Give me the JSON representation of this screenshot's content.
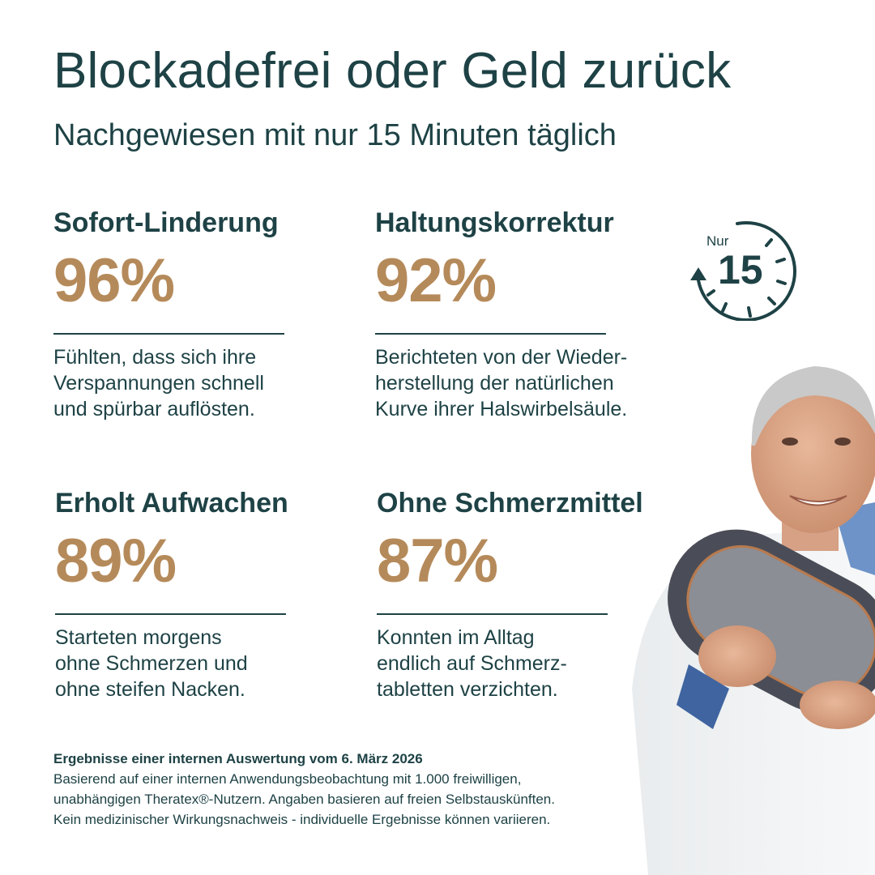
{
  "headline": "Blockadefrei oder Geld zurück",
  "subheadline": "Nachgewiesen mit nur 15 Minuten täglich",
  "stats": [
    {
      "title": "Sofort-Linderung",
      "percent": "96%",
      "text": "Fühlten, dass sich ihre\nVerspannungen schnell\nund spürbar auflösten."
    },
    {
      "title": "Haltungskorrektur",
      "percent": "92%",
      "text": "Berichteten von der Wieder-\nherstellung der natürlichen\nKurve ihrer Halswirbelsäule."
    },
    {
      "title": "Erholt Aufwachen",
      "percent": "89%",
      "text": "Starteten morgens\nohne Schmerzen und\nohne steifen Nacken."
    },
    {
      "title": "Ohne Schmerzmittel",
      "percent": "87%",
      "text": "Konnten im Alltag\nendlich auf Schmerz-\ntabletten verzichten."
    }
  ],
  "badge": {
    "label": "Nur",
    "number": "15",
    "icon": "timer-icon"
  },
  "footnote": {
    "title": "Ergebnisse einer internen Auswertung vom 6. März 2026",
    "lines": [
      "Basierend auf einer internen Anwendungsbeobachtung mit 1.000 freiwilligen,",
      "unabhängigen Theratex®-Nutzern. Angaben basieren auf freien Selbstauskünften.",
      "Kein medizinischer Wirkungsnachweis - individuelle Ergebnisse können variieren."
    ]
  },
  "colors": {
    "primary": "#1e4245",
    "accent": "#b58a5a",
    "background": "#ffffff"
  }
}
